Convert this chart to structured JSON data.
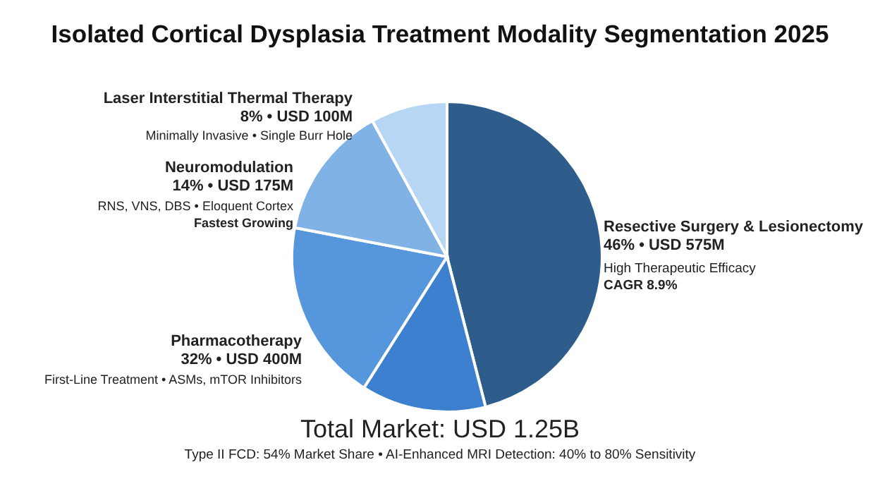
{
  "chart_data": {
    "type": "pie",
    "title": "Isolated Cortical Dysplasia Treatment Modality Segmentation 2025",
    "categories": [
      "Resective Surgery & Lesionectomy",
      null,
      "Pharmacotherapy",
      "Neuromodulation",
      "Laser Interstitial Thermal Therapy"
    ],
    "values": [
      46,
      13,
      19,
      14,
      8
    ],
    "colors": [
      "#2e5d8c",
      "#3d80cf",
      "#5596dd",
      "#80b2e6",
      "#b7d6f3"
    ],
    "annotations": [
      "46% • USD 575M",
      "High Therapeutic Efficacy",
      "CAGR 8.9%",
      "32% • USD 400M",
      "First-Line Treatment • ASMs, mTOR Inhibitors",
      "14% • USD 175M",
      "RNS, VNS, DBS • Eloquent Cortex",
      "Fastest Growing",
      "8% • USD 100M",
      "Minimally Invasive • Single Burr Hole",
      "Total Market: USD 1.25B",
      "Type II FCD: 54% Market Share • AI-Enhanced MRI Detection: 40% to 80% Sensitivity"
    ],
    "legend": false
  }
}
